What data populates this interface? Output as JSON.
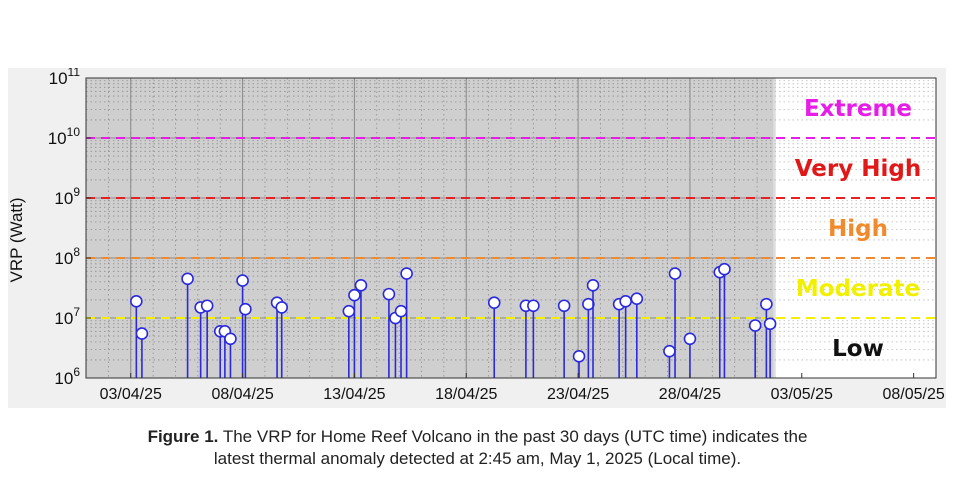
{
  "chart_data": {
    "type": "scatter",
    "title": "",
    "xlabel": "",
    "ylabel": "VRP (Watt)",
    "yscale": "log",
    "ylim": [
      1000000,
      100000000000
    ],
    "xlim": [
      "2025-04-01",
      "2025-05-09"
    ],
    "y_ticks": [
      {
        "value": 1000000,
        "base": "10",
        "exp": "6"
      },
      {
        "value": 10000000,
        "base": "10",
        "exp": "7"
      },
      {
        "value": 100000000,
        "base": "10",
        "exp": "8"
      },
      {
        "value": 1000000000,
        "base": "10",
        "exp": "9"
      },
      {
        "value": 10000000000,
        "base": "10",
        "exp": "10"
      },
      {
        "value": 100000000000,
        "base": "10",
        "exp": "11"
      }
    ],
    "x_ticks": [
      {
        "date": "2025-04-03",
        "label": "03/04/25"
      },
      {
        "date": "2025-04-08",
        "label": "08/04/25"
      },
      {
        "date": "2025-04-13",
        "label": "13/04/25"
      },
      {
        "date": "2025-04-18",
        "label": "18/04/25"
      },
      {
        "date": "2025-04-23",
        "label": "23/04/25"
      },
      {
        "date": "2025-04-28",
        "label": "28/04/25"
      },
      {
        "date": "2025-05-03",
        "label": "03/05/25"
      },
      {
        "date": "2025-05-08",
        "label": "08/05/25"
      }
    ],
    "current_time": "2025-05-01 18:45",
    "thresholds": [
      {
        "value": 10000000000,
        "color": "#e81ce8"
      },
      {
        "value": 1000000000,
        "color": "#e82020"
      },
      {
        "value": 100000000,
        "color": "#f08a2c"
      },
      {
        "value": 10000000,
        "color": "#f0f000"
      }
    ],
    "levels": [
      {
        "label": "Extreme",
        "color": "#e81ce8",
        "value": 10000000000
      },
      {
        "label": "Very High",
        "color": "#e01818",
        "value": 1000000000
      },
      {
        "label": "High",
        "color": "#f08a2c",
        "value": 100000000
      },
      {
        "label": "Moderate",
        "color": "#f0f000",
        "value": 10000000
      },
      {
        "label": "Low",
        "color": "#111111",
        "value": 1000000
      }
    ],
    "series": [
      {
        "marker_color": "#2a2adc",
        "points": [
          {
            "x": "2025-04-03 06:00",
            "y": 19000000
          },
          {
            "x": "2025-04-03 12:00",
            "y": 5500000
          },
          {
            "x": "2025-04-05 13:00",
            "y": 45000000
          },
          {
            "x": "2025-04-06 03:00",
            "y": 15000000
          },
          {
            "x": "2025-04-06 10:00",
            "y": 16000000
          },
          {
            "x": "2025-04-07 00:00",
            "y": 6000000
          },
          {
            "x": "2025-04-07 05:00",
            "y": 6000000
          },
          {
            "x": "2025-04-07 11:00",
            "y": 4500000
          },
          {
            "x": "2025-04-08 00:00",
            "y": 42000000
          },
          {
            "x": "2025-04-08 03:00",
            "y": 14000000
          },
          {
            "x": "2025-04-09 13:00",
            "y": 18000000
          },
          {
            "x": "2025-04-09 18:00",
            "y": 15000000
          },
          {
            "x": "2025-04-12 18:00",
            "y": 13000000
          },
          {
            "x": "2025-04-13 00:00",
            "y": 24000000
          },
          {
            "x": "2025-04-13 07:00",
            "y": 35000000
          },
          {
            "x": "2025-04-14 13:00",
            "y": 25000000
          },
          {
            "x": "2025-04-14 20:00",
            "y": 10000000
          },
          {
            "x": "2025-04-15 02:00",
            "y": 13000000
          },
          {
            "x": "2025-04-15 08:00",
            "y": 55000000
          },
          {
            "x": "2025-04-19 06:00",
            "y": 18000000
          },
          {
            "x": "2025-04-20 16:00",
            "y": 16000000
          },
          {
            "x": "2025-04-21 00:00",
            "y": 16000000
          },
          {
            "x": "2025-04-22 09:00",
            "y": 16000000
          },
          {
            "x": "2025-04-23 01:00",
            "y": 2300000
          },
          {
            "x": "2025-04-23 11:00",
            "y": 17000000
          },
          {
            "x": "2025-04-23 16:00",
            "y": 35000000
          },
          {
            "x": "2025-04-24 20:00",
            "y": 17000000
          },
          {
            "x": "2025-04-25 03:00",
            "y": 19000000
          },
          {
            "x": "2025-04-25 15:00",
            "y": 21000000
          },
          {
            "x": "2025-04-27 02:00",
            "y": 2800000
          },
          {
            "x": "2025-04-27 08:00",
            "y": 55000000
          },
          {
            "x": "2025-04-28 00:00",
            "y": 4500000
          },
          {
            "x": "2025-04-29 08:00",
            "y": 58000000
          },
          {
            "x": "2025-04-29 13:00",
            "y": 65000000
          },
          {
            "x": "2025-04-30 22:00",
            "y": 7500000
          },
          {
            "x": "2025-05-01 10:00",
            "y": 17000000
          },
          {
            "x": "2025-05-01 14:00",
            "y": 8000000
          }
        ]
      }
    ]
  },
  "caption": {
    "figure_label": "Figure 1.",
    "line1": "The VRP for Home Reef Volcano in the past 30 days (UTC time) indicates the",
    "line2": "latest thermal anomaly detected at 2:45 am, May 1, 2025 (Local time)."
  }
}
